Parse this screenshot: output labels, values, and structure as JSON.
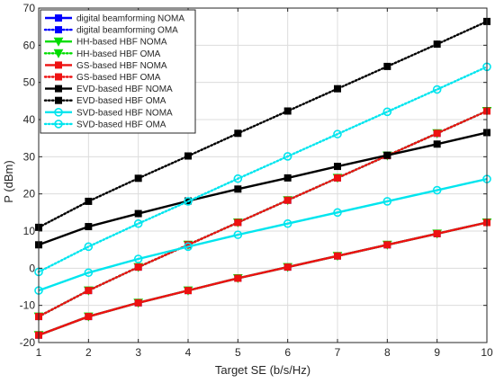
{
  "chart_data": {
    "type": "line",
    "title": "",
    "xlabel": "Target SE (b/s/Hz)",
    "ylabel": "P (dBm)",
    "xlim": [
      1,
      10
    ],
    "ylim": [
      -20,
      70
    ],
    "xticks": [
      "1",
      "2",
      "3",
      "4",
      "5",
      "6",
      "7",
      "8",
      "9",
      "10"
    ],
    "yticks": [
      "-20",
      "-10",
      "0",
      "10",
      "20",
      "30",
      "40",
      "50",
      "60",
      "70"
    ],
    "grid": true,
    "legend_position": "top-left",
    "x": [
      1,
      2,
      3,
      4,
      5,
      6,
      7,
      8,
      9,
      10
    ],
    "series": [
      {
        "name": "digital beamforming NOMA",
        "color": "#0000ff",
        "line": "solid",
        "marker": "square",
        "values": [
          -18,
          -13,
          -9.3,
          -6,
          -2.7,
          0.3,
          3.3,
          6.3,
          9.3,
          12.3
        ]
      },
      {
        "name": "digital beamforming OMA",
        "color": "#0000ff",
        "line": "dotted",
        "marker": "square",
        "values": [
          -13,
          -6,
          0.3,
          6.3,
          12.3,
          18.3,
          24.3,
          30.3,
          36.3,
          42.3
        ]
      },
      {
        "name": "HH-based HBF NOMA",
        "color": "#00dd00",
        "line": "solid",
        "marker": "triangle-down",
        "values": [
          -18,
          -13,
          -9.3,
          -6,
          -2.7,
          0.3,
          3.3,
          6.3,
          9.3,
          12.3
        ]
      },
      {
        "name": "HH-based HBF OMA",
        "color": "#00dd00",
        "line": "dotted",
        "marker": "triangle-down",
        "values": [
          -13,
          -6,
          0.3,
          6.3,
          12.3,
          18.3,
          24.3,
          30.3,
          36.3,
          42.3
        ]
      },
      {
        "name": "GS-based HBF NOMA",
        "color": "#ee1111",
        "line": "solid",
        "marker": "square",
        "values": [
          -18,
          -13,
          -9.3,
          -6,
          -2.7,
          0.3,
          3.3,
          6.3,
          9.3,
          12.3
        ]
      },
      {
        "name": "GS-based HBF OMA",
        "color": "#ee1111",
        "line": "dotted",
        "marker": "square",
        "values": [
          -13,
          -6,
          0.3,
          6.3,
          12.3,
          18.3,
          24.3,
          30.3,
          36.3,
          42.3
        ]
      },
      {
        "name": "EVD-based HBF NOMA",
        "color": "#000000",
        "line": "solid",
        "marker": "square",
        "values": [
          6.3,
          11.2,
          14.7,
          18.1,
          21.3,
          24.3,
          27.4,
          30.4,
          33.4,
          36.5
        ]
      },
      {
        "name": "EVD-based HBF OMA",
        "color": "#000000",
        "line": "dotted",
        "marker": "square",
        "values": [
          11,
          18,
          24.2,
          30.2,
          36.3,
          42.3,
          48.3,
          54.3,
          60.3,
          66.4
        ]
      },
      {
        "name": "SVD-based HBF NOMA",
        "color": "#00e5ee",
        "line": "solid",
        "marker": "circle",
        "values": [
          -6,
          -1.2,
          2.5,
          5.8,
          9,
          12,
          15,
          18,
          21,
          24
        ]
      },
      {
        "name": "SVD-based HBF OMA",
        "color": "#00e5ee",
        "line": "dotted",
        "marker": "circle",
        "values": [
          -1,
          5.8,
          12,
          18,
          24.1,
          30.1,
          36.1,
          42.1,
          48.1,
          54.2
        ]
      }
    ]
  }
}
